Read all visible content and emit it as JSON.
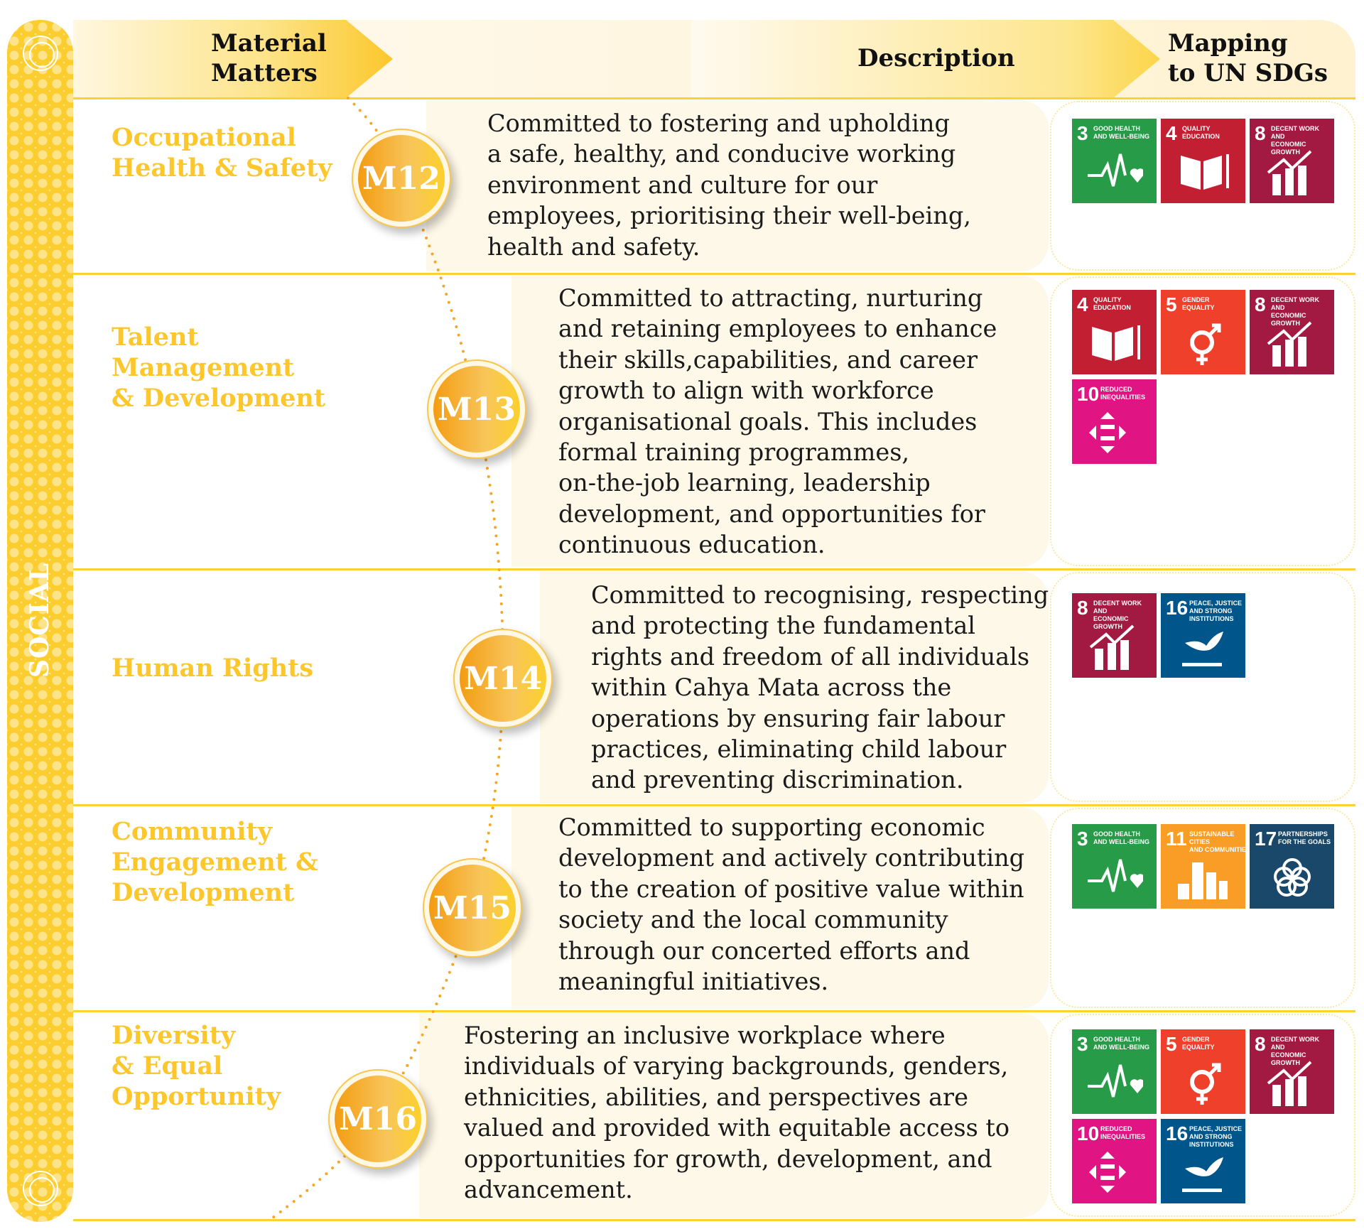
{
  "section": "SOCIAL",
  "header": {
    "col1": [
      "Material",
      "Matters"
    ],
    "col2": "Description",
    "col3": [
      "Mapping",
      "to UN SDGs"
    ]
  },
  "colors": {
    "accent": "#fcc72c",
    "sdg3": "#279B48",
    "sdg4": "#C31F33",
    "sdg5": "#EF402B",
    "sdg8": "#A21942",
    "sdg10": "#E01483",
    "sdg11": "#F99D26",
    "sdg16": "#00558A",
    "sdg17": "#19486A"
  },
  "matters": [
    {
      "code": "M12",
      "name": [
        "Occupational",
        "Health & Safety"
      ],
      "description": [
        "Committed to fostering and upholding",
        "a safe, healthy, and conducive working",
        "environment and culture for our",
        "employees, prioritising their well-being,",
        "health and safety."
      ],
      "sdgs": [
        3,
        4,
        8
      ]
    },
    {
      "code": "M13",
      "name": [
        "Talent",
        "Management",
        "& Development"
      ],
      "description": [
        "Committed to attracting, nurturing",
        "and retaining employees to enhance",
        "their skills,capabilities, and career",
        "growth to align with workforce",
        "organisational goals. This includes",
        "formal training programmes,",
        "on-the-job learning, leadership",
        "development, and opportunities for",
        "continuous education."
      ],
      "sdgs": [
        4,
        5,
        8,
        10
      ]
    },
    {
      "code": "M14",
      "name": [
        "Human Rights"
      ],
      "description": [
        "Committed to recognising, respecting",
        "and protecting the fundamental",
        "rights and freedom of all individuals",
        "within Cahya Mata across the",
        "operations by ensuring fair labour",
        "practices, eliminating child labour",
        "and preventing discrimination."
      ],
      "sdgs": [
        8,
        16
      ]
    },
    {
      "code": "M15",
      "name": [
        "Community",
        "Engagement &",
        "Development"
      ],
      "description": [
        "Committed to supporting economic",
        "development and actively contributing",
        "to the creation of positive value within",
        "society and the local community",
        "through our concerted efforts and",
        "meaningful initiatives."
      ],
      "sdgs": [
        3,
        11,
        17
      ]
    },
    {
      "code": "M16",
      "name": [
        "Diversity",
        "& Equal",
        "Opportunity"
      ],
      "description": [
        "Fostering an inclusive workplace where",
        "individuals of varying backgrounds, genders,",
        "ethnicities, abilities, and perspectives are",
        "valued and provided with equitable access to",
        "opportunities for growth, development, and",
        "advancement."
      ],
      "sdgs": [
        3,
        5,
        8,
        10,
        16
      ]
    }
  ],
  "sdg_labels": {
    "3": [
      "GOOD HEALTH",
      "AND WELL-BEING"
    ],
    "4": [
      "QUALITY",
      "EDUCATION"
    ],
    "5": [
      "GENDER",
      "EQUALITY"
    ],
    "8": [
      "DECENT WORK AND",
      "ECONOMIC GROWTH"
    ],
    "10": [
      "REDUCED",
      "INEQUALITIES"
    ],
    "11": [
      "SUSTAINABLE CITIES",
      "AND COMMUNITIES"
    ],
    "16": [
      "PEACE, JUSTICE",
      "AND STRONG",
      "INSTITUTIONS"
    ],
    "17": [
      "PARTNERSHIPS",
      "FOR THE GOALS"
    ]
  },
  "sdg_icons": {
    "3": "heartbeat-icon",
    "4": "book-pencil-icon",
    "5": "gender-equality-icon",
    "8": "growth-chart-icon",
    "10": "reduced-inequalities-icon",
    "11": "city-buildings-icon",
    "16": "dove-gavel-icon",
    "17": "partnership-flower-icon"
  }
}
